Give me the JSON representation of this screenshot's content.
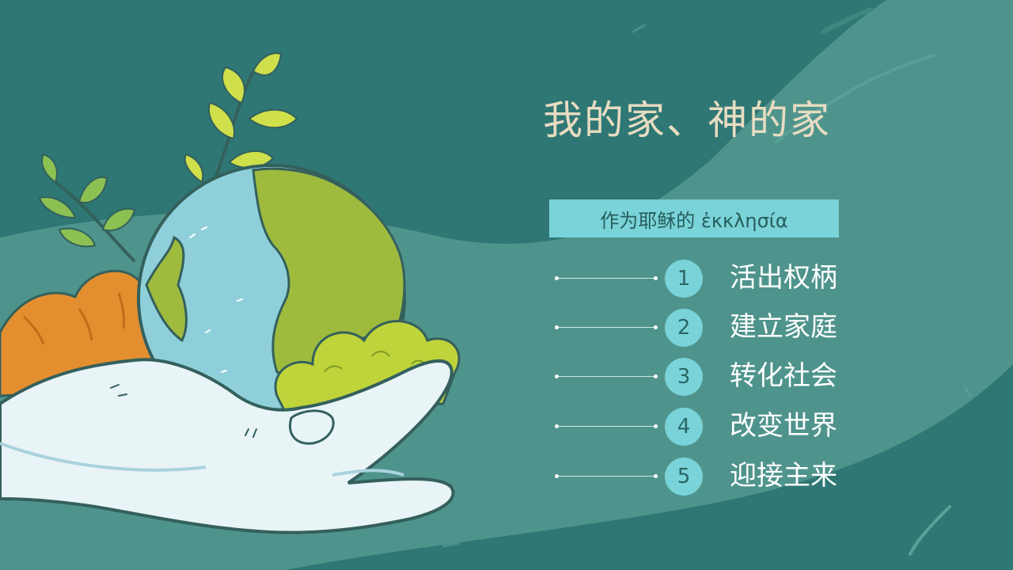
{
  "slide": {
    "title": "我的家、神的家",
    "subtitle": "作为耶稣的 ἐκκλησία",
    "items": [
      {
        "number": "1",
        "label": "活出权柄"
      },
      {
        "number": "2",
        "label": "建立家庭"
      },
      {
        "number": "3",
        "label": "转化社会"
      },
      {
        "number": "4",
        "label": "改变世界"
      },
      {
        "number": "5",
        "label": "迎接主来"
      }
    ]
  },
  "colors": {
    "background": "#2f7774",
    "wave": "#4f948c",
    "accent": "#79d3d8",
    "title": "#e8dcc2",
    "text": "#ffffff"
  },
  "illustration": {
    "subject": "hand-holding-globe-icon",
    "elements": [
      "globe-icon",
      "hand-icon",
      "leaf-icon",
      "bush-icon"
    ]
  }
}
